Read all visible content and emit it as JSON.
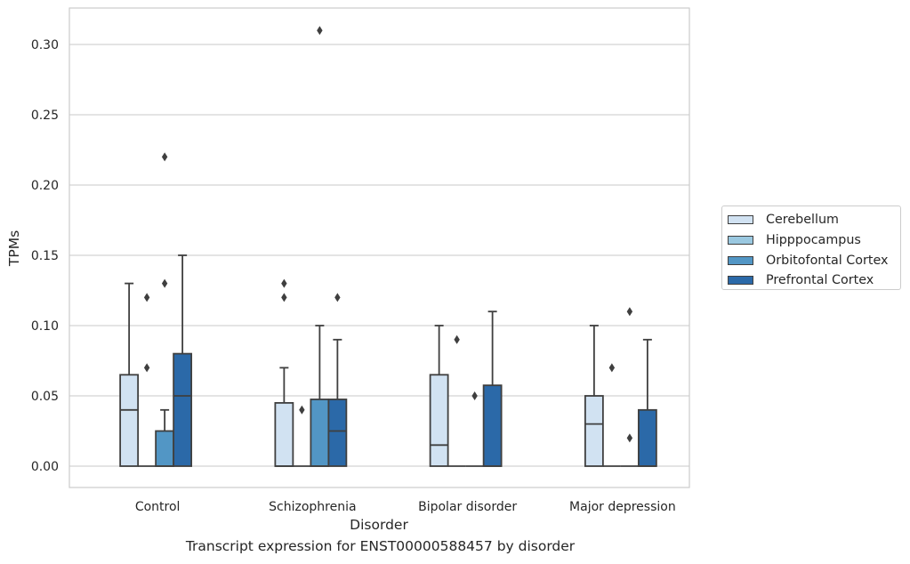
{
  "chart_data": {
    "type": "box",
    "xlabel": "Disorder",
    "ylabel": "TPMs",
    "caption": "Transcript expression for ENST00000588457 by disorder",
    "categories": [
      "Control",
      "Schizophrenia",
      "Bipolar disorder",
      "Major depression"
    ],
    "ylim": [
      -0.015,
      0.325
    ],
    "yticks": [
      0.0,
      0.05,
      0.1,
      0.15,
      0.2,
      0.25,
      0.3
    ],
    "ytick_labels": [
      "0.00",
      "0.05",
      "0.10",
      "0.15",
      "0.20",
      "0.25",
      "0.30"
    ],
    "grid": "horizontal",
    "legend_position": "right",
    "series": [
      {
        "name": "Cerebellum",
        "color": "#d1e2f2",
        "boxes": [
          {
            "q1": 0.0,
            "median": 0.04,
            "q3": 0.065,
            "whisker_low": 0.0,
            "whisker_high": 0.13,
            "outliers": []
          },
          {
            "q1": 0.0,
            "median": 0.0,
            "q3": 0.045,
            "whisker_low": 0.0,
            "whisker_high": 0.07,
            "outliers": [
              0.12,
              0.13
            ]
          },
          {
            "q1": 0.0,
            "median": 0.015,
            "q3": 0.065,
            "whisker_low": 0.0,
            "whisker_high": 0.1,
            "outliers": []
          },
          {
            "q1": 0.0,
            "median": 0.03,
            "q3": 0.05,
            "whisker_low": 0.0,
            "whisker_high": 0.1,
            "outliers": []
          }
        ]
      },
      {
        "name": "Hipppocampus",
        "color": "#9ac8e0",
        "boxes": [
          {
            "q1": 0.0,
            "median": 0.0,
            "q3": 0.0,
            "whisker_low": 0.0,
            "whisker_high": 0.0,
            "outliers": [
              0.07,
              0.12
            ]
          },
          {
            "q1": 0.0,
            "median": 0.0,
            "q3": 0.0,
            "whisker_low": 0.0,
            "whisker_high": 0.0,
            "outliers": [
              0.04
            ]
          },
          {
            "q1": 0.0,
            "median": 0.0,
            "q3": 0.0,
            "whisker_low": 0.0,
            "whisker_high": 0.0,
            "outliers": [
              0.09
            ]
          },
          {
            "q1": 0.0,
            "median": 0.0,
            "q3": 0.0,
            "whisker_low": 0.0,
            "whisker_high": 0.0,
            "outliers": [
              0.07
            ]
          }
        ]
      },
      {
        "name": "Orbitofontal Cortex",
        "color": "#5296c5",
        "boxes": [
          {
            "q1": 0.0,
            "median": 0.0,
            "q3": 0.025,
            "whisker_low": 0.0,
            "whisker_high": 0.04,
            "outliers": [
              0.13,
              0.22
            ]
          },
          {
            "q1": 0.0,
            "median": 0.0,
            "q3": 0.0475,
            "whisker_low": 0.0,
            "whisker_high": 0.1,
            "outliers": [
              0.31
            ]
          },
          {
            "q1": 0.0,
            "median": 0.0,
            "q3": 0.0,
            "whisker_low": 0.0,
            "whisker_high": 0.0,
            "outliers": [
              0.05
            ]
          },
          {
            "q1": 0.0,
            "median": 0.0,
            "q3": 0.0,
            "whisker_low": 0.0,
            "whisker_high": 0.0,
            "outliers": [
              0.02,
              0.11
            ]
          }
        ]
      },
      {
        "name": "Prefrontal Cortex",
        "color": "#2b69a8",
        "boxes": [
          {
            "q1": 0.0,
            "median": 0.05,
            "q3": 0.08,
            "whisker_low": 0.0,
            "whisker_high": 0.15,
            "outliers": []
          },
          {
            "q1": 0.0,
            "median": 0.025,
            "q3": 0.0475,
            "whisker_low": 0.0,
            "whisker_high": 0.09,
            "outliers": [
              0.12
            ]
          },
          {
            "q1": 0.0,
            "median": 0.0,
            "q3": 0.0575,
            "whisker_low": 0.0,
            "whisker_high": 0.11,
            "outliers": []
          },
          {
            "q1": 0.0,
            "median": 0.0,
            "q3": 0.04,
            "whisker_low": 0.0,
            "whisker_high": 0.09,
            "outliers": []
          }
        ]
      }
    ]
  }
}
